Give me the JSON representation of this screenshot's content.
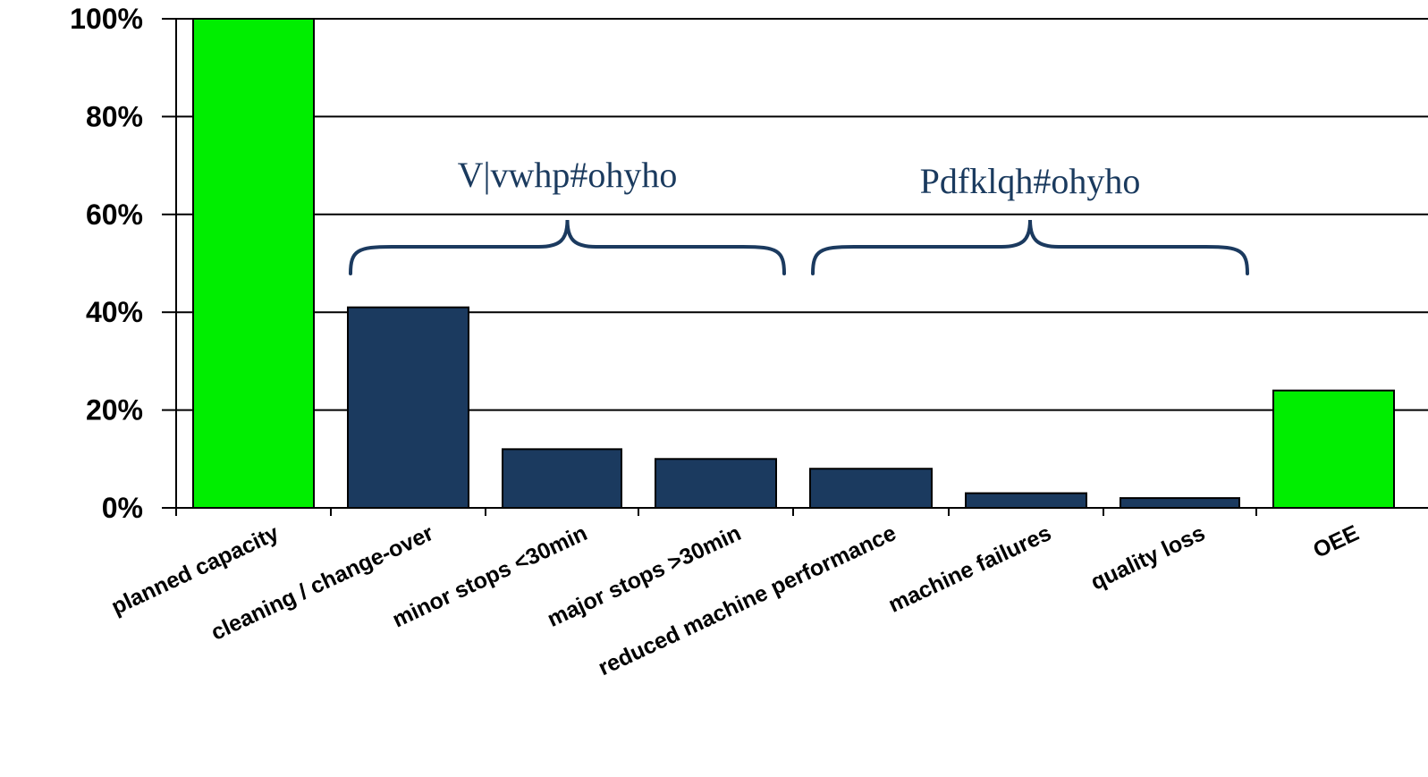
{
  "chart_data": {
    "type": "bar",
    "title": "",
    "xlabel": "",
    "ylabel": "",
    "categories": [
      "planned capacity",
      "cleaning / change-over",
      "minor stops <30min",
      "major stops >30min",
      "reduced machine performance",
      "machine failures",
      "quality loss",
      "OEE"
    ],
    "values": [
      100,
      41,
      12,
      10,
      8,
      3,
      2,
      24
    ],
    "bar_colors": [
      "#00ee00",
      "#1b3a5f",
      "#1b3a5f",
      "#1b3a5f",
      "#1b3a5f",
      "#1b3a5f",
      "#1b3a5f",
      "#00ee00"
    ],
    "ylim": [
      0,
      100
    ],
    "yticks": [
      "0%",
      "20%",
      "40%",
      "60%",
      "80%",
      "100%"
    ],
    "ytick_values": [
      0,
      20,
      40,
      60,
      80,
      100
    ],
    "grid": true,
    "legend": "none",
    "annotations": [
      {
        "text": "V|vwhp#ohyho",
        "brace_from_category": 1,
        "brace_to_category": 3
      },
      {
        "text": "Pdfklqh#ohyho",
        "brace_from_category": 4,
        "brace_to_category": 6
      }
    ],
    "colors": {
      "highlight": "#00ee00",
      "loss": "#1b3a5f",
      "brace": "#1b3a5f",
      "grid": "#000000"
    }
  }
}
